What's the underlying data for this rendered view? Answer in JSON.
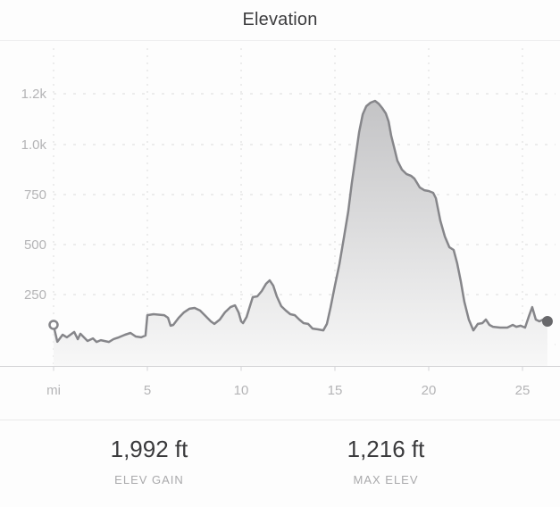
{
  "header": {
    "title": "Elevation"
  },
  "stats": [
    {
      "value": "1,992 ft",
      "label": "ELEV GAIN"
    },
    {
      "value": "1,216 ft",
      "label": "MAX ELEV"
    }
  ],
  "chart_data": {
    "type": "area",
    "title": "Elevation",
    "x_unit": "mi",
    "y_unit": "ft",
    "x_ticks": [
      {
        "value": 0,
        "label": "mi"
      },
      {
        "value": 5,
        "label": "5"
      },
      {
        "value": 10,
        "label": "10"
      },
      {
        "value": 15,
        "label": "15"
      },
      {
        "value": 20,
        "label": "20"
      },
      {
        "value": 25,
        "label": "25"
      }
    ],
    "y_ticks": [
      {
        "value": 0,
        "label": ""
      },
      {
        "value": 250,
        "label": "250"
      },
      {
        "value": 500,
        "label": "500"
      },
      {
        "value": 750,
        "label": "750"
      },
      {
        "value": 1000,
        "label": "1.0k"
      },
      {
        "value": 1200,
        "label": "1.2k"
      }
    ],
    "xlim": [
      0,
      27
    ],
    "ylim": [
      0,
      1300
    ],
    "grid": "dashed",
    "markers": {
      "start": "open-circle",
      "end": "filled-circle"
    },
    "points": [
      [
        0,
        94
      ],
      [
        0.2,
        14
      ],
      [
        0.48,
        49
      ],
      [
        0.71,
        36
      ],
      [
        1.1,
        63
      ],
      [
        1.29,
        27
      ],
      [
        1.43,
        54
      ],
      [
        1.81,
        18
      ],
      [
        2.1,
        31
      ],
      [
        2.29,
        13
      ],
      [
        2.52,
        22
      ],
      [
        2.95,
        13
      ],
      [
        3.19,
        27
      ],
      [
        3.48,
        36
      ],
      [
        3.81,
        49
      ],
      [
        4.1,
        58
      ],
      [
        4.38,
        40
      ],
      [
        4.67,
        36
      ],
      [
        4.9,
        45
      ],
      [
        5.0,
        147
      ],
      [
        5.33,
        152
      ],
      [
        5.9,
        147
      ],
      [
        6.1,
        134
      ],
      [
        6.24,
        94
      ],
      [
        6.38,
        98
      ],
      [
        6.67,
        134
      ],
      [
        6.95,
        161
      ],
      [
        7.24,
        179
      ],
      [
        7.52,
        183
      ],
      [
        7.81,
        170
      ],
      [
        8.1,
        143
      ],
      [
        8.38,
        116
      ],
      [
        8.57,
        103
      ],
      [
        8.86,
        125
      ],
      [
        9.14,
        161
      ],
      [
        9.43,
        187
      ],
      [
        9.67,
        196
      ],
      [
        9.86,
        161
      ],
      [
        10.0,
        116
      ],
      [
        10.1,
        107
      ],
      [
        10.29,
        138
      ],
      [
        10.48,
        196
      ],
      [
        10.62,
        237
      ],
      [
        10.86,
        241
      ],
      [
        11.1,
        268
      ],
      [
        11.33,
        304
      ],
      [
        11.52,
        321
      ],
      [
        11.71,
        295
      ],
      [
        11.9,
        241
      ],
      [
        12.14,
        192
      ],
      [
        12.38,
        170
      ],
      [
        12.62,
        152
      ],
      [
        12.86,
        147
      ],
      [
        13.1,
        125
      ],
      [
        13.33,
        107
      ],
      [
        13.57,
        103
      ],
      [
        13.81,
        80
      ],
      [
        14.1,
        76
      ],
      [
        14.38,
        71
      ],
      [
        14.57,
        103
      ],
      [
        14.76,
        183
      ],
      [
        15.0,
        295
      ],
      [
        15.24,
        402
      ],
      [
        15.48,
        536
      ],
      [
        15.71,
        665
      ],
      [
        15.9,
        808
      ],
      [
        16.1,
        937
      ],
      [
        16.29,
        1049
      ],
      [
        16.48,
        1119
      ],
      [
        16.67,
        1151
      ],
      [
        16.9,
        1165
      ],
      [
        17.14,
        1172
      ],
      [
        17.33,
        1161
      ],
      [
        17.52,
        1144
      ],
      [
        17.71,
        1123
      ],
      [
        17.86,
        1091
      ],
      [
        18.0,
        1035
      ],
      [
        18.19,
        973
      ],
      [
        18.33,
        920
      ],
      [
        18.57,
        875
      ],
      [
        18.81,
        853
      ],
      [
        19.05,
        844
      ],
      [
        19.24,
        830
      ],
      [
        19.38,
        808
      ],
      [
        19.52,
        786
      ],
      [
        19.76,
        772
      ],
      [
        20.0,
        768
      ],
      [
        20.24,
        759
      ],
      [
        20.38,
        732
      ],
      [
        20.62,
        620
      ],
      [
        20.86,
        540
      ],
      [
        21.1,
        487
      ],
      [
        21.33,
        473
      ],
      [
        21.52,
        406
      ],
      [
        21.71,
        317
      ],
      [
        21.9,
        214
      ],
      [
        22.14,
        125
      ],
      [
        22.38,
        71
      ],
      [
        22.62,
        103
      ],
      [
        22.86,
        107
      ],
      [
        23.05,
        125
      ],
      [
        23.24,
        98
      ],
      [
        23.43,
        89
      ],
      [
        23.81,
        85
      ],
      [
        24.19,
        85
      ],
      [
        24.48,
        98
      ],
      [
        24.67,
        89
      ],
      [
        24.9,
        94
      ],
      [
        25.14,
        85
      ],
      [
        25.33,
        138
      ],
      [
        25.52,
        187
      ],
      [
        25.71,
        125
      ],
      [
        25.9,
        116
      ],
      [
        26.1,
        125
      ],
      [
        26.33,
        116
      ]
    ],
    "colors": {
      "line": "#86868a",
      "fill_top": "#c3c3c5",
      "fill_bottom": "#f8f8f8",
      "grid": "#dadadc",
      "axis": "#d4d4d6",
      "tick_label": "#b4b4b6",
      "title": "#3c3c3e",
      "stat_value": "#3a3a3c",
      "stat_label": "#a9a9ab",
      "start_dot_stroke": "#86868a",
      "end_dot": "#68686b"
    }
  }
}
